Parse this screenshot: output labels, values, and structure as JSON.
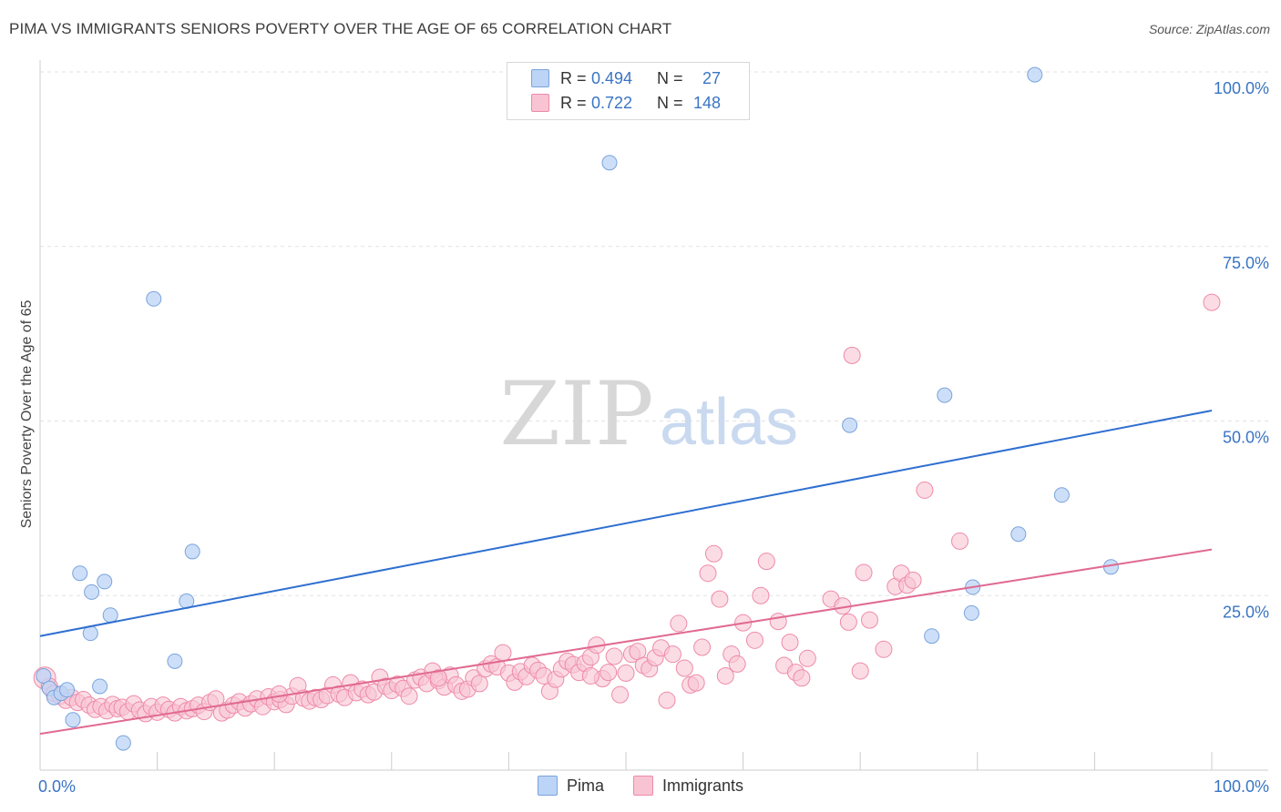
{
  "title": "PIMA VS IMMIGRANTS SENIORS POVERTY OVER THE AGE OF 65 CORRELATION CHART",
  "source": "Source: ZipAtlas.com",
  "watermark": {
    "zip": "ZIP",
    "atlas": "atlas"
  },
  "legend_top": [
    {
      "r_label": "R =",
      "r_value": "0.494",
      "n_label": "N =",
      "n_value": "27"
    },
    {
      "r_label": "R =",
      "r_value": "0.722",
      "n_label": "N =",
      "n_value": "148"
    }
  ],
  "colors": {
    "pima_fill": "#bcd4f5",
    "pima_stroke": "#7aa3dc",
    "pima_line": "#2f6fd0",
    "imm_fill": "#f8c4d3",
    "imm_stroke": "#ee8aa8",
    "imm_line": "#e06a92",
    "tick_label": "#3a74c4",
    "grid": "#e2e2e2"
  },
  "chart_data": {
    "type": "scatter",
    "title": "PIMA VS IMMIGRANTS SENIORS POVERTY OVER THE AGE OF 65 CORRELATION CHART",
    "xlabel": "",
    "ylabel": "Seniors Poverty Over the Age of 65",
    "xlim": [
      0,
      100
    ],
    "ylim": [
      0,
      102
    ],
    "x_tick_labels": [
      "0.0%",
      "100.0%"
    ],
    "y_ticks": [
      25,
      50,
      75,
      100
    ],
    "y_tick_labels": [
      "25.0%",
      "50.0%",
      "75.0%",
      "100.0%"
    ],
    "grid": true,
    "legend_placement": "top-center and bottom",
    "series": [
      {
        "name": "Pima",
        "r": 0.494,
        "n": 27,
        "trend": [
          [
            0,
            19.2
          ],
          [
            100,
            51.5
          ]
        ],
        "points": [
          [
            0.3,
            13.5
          ],
          [
            0.8,
            11.7
          ],
          [
            1.2,
            10.4
          ],
          [
            1.8,
            11.0
          ],
          [
            2.3,
            11.5
          ],
          [
            2.8,
            7.2
          ],
          [
            3.4,
            28.2
          ],
          [
            4.3,
            19.6
          ],
          [
            4.4,
            25.5
          ],
          [
            5.1,
            12.0
          ],
          [
            5.5,
            27.0
          ],
          [
            6.0,
            22.2
          ],
          [
            7.1,
            3.9
          ],
          [
            9.7,
            67.5
          ],
          [
            11.5,
            15.6
          ],
          [
            12.5,
            24.2
          ],
          [
            13.0,
            31.3
          ],
          [
            48.6,
            87.0
          ],
          [
            69.1,
            49.4
          ],
          [
            76.1,
            19.2
          ],
          [
            77.2,
            53.7
          ],
          [
            79.5,
            22.5
          ],
          [
            79.6,
            26.2
          ],
          [
            83.5,
            33.8
          ],
          [
            84.9,
            99.6
          ],
          [
            87.2,
            39.4
          ],
          [
            91.4,
            29.1
          ]
        ]
      },
      {
        "name": "Immigrants",
        "r": 0.722,
        "n": 148,
        "trend": [
          [
            0,
            5.2
          ],
          [
            100,
            31.6
          ]
        ],
        "points": [
          [
            0.4,
            13.2
          ],
          [
            0.8,
            12.0
          ],
          [
            1.2,
            11.0
          ],
          [
            1.7,
            10.6
          ],
          [
            2.2,
            10.0
          ],
          [
            2.7,
            10.4
          ],
          [
            3.2,
            9.7
          ],
          [
            3.7,
            10.1
          ],
          [
            4.2,
            9.3
          ],
          [
            4.7,
            8.7
          ],
          [
            5.2,
            9.1
          ],
          [
            5.7,
            8.5
          ],
          [
            6.2,
            9.4
          ],
          [
            6.6,
            8.8
          ],
          [
            7.0,
            9.0
          ],
          [
            7.5,
            8.4
          ],
          [
            8.0,
            9.5
          ],
          [
            8.5,
            8.6
          ],
          [
            9.0,
            8.1
          ],
          [
            9.5,
            9.1
          ],
          [
            10.0,
            8.3
          ],
          [
            10.5,
            9.3
          ],
          [
            11.0,
            8.7
          ],
          [
            11.5,
            8.2
          ],
          [
            12.0,
            9.1
          ],
          [
            12.5,
            8.5
          ],
          [
            13.0,
            8.8
          ],
          [
            13.5,
            9.3
          ],
          [
            14.0,
            8.4
          ],
          [
            14.5,
            9.7
          ],
          [
            15.0,
            10.2
          ],
          [
            15.5,
            8.2
          ],
          [
            16.0,
            8.6
          ],
          [
            16.5,
            9.3
          ],
          [
            17.0,
            9.8
          ],
          [
            17.5,
            8.9
          ],
          [
            18.0,
            9.5
          ],
          [
            18.5,
            10.2
          ],
          [
            19.0,
            9.1
          ],
          [
            19.5,
            10.5
          ],
          [
            20.0,
            9.8
          ],
          [
            20.5,
            10.1
          ],
          [
            21.0,
            9.4
          ],
          [
            21.5,
            10.6
          ],
          [
            22.0,
            12.1
          ],
          [
            22.5,
            10.3
          ],
          [
            23.0,
            9.9
          ],
          [
            23.5,
            10.4
          ],
          [
            24.0,
            10.1
          ],
          [
            24.5,
            10.7
          ],
          [
            25.0,
            12.2
          ],
          [
            25.5,
            10.9
          ],
          [
            26.0,
            10.4
          ],
          [
            26.5,
            12.5
          ],
          [
            27.0,
            11.1
          ],
          [
            27.5,
            11.6
          ],
          [
            28.0,
            10.8
          ],
          [
            28.5,
            11.2
          ],
          [
            29.0,
            13.3
          ],
          [
            29.5,
            12.0
          ],
          [
            30.0,
            11.4
          ],
          [
            30.5,
            12.3
          ],
          [
            31.0,
            11.7
          ],
          [
            31.5,
            10.6
          ],
          [
            32.0,
            12.9
          ],
          [
            32.5,
            13.3
          ],
          [
            33.0,
            12.4
          ],
          [
            33.5,
            14.2
          ],
          [
            34.0,
            12.8
          ],
          [
            34.5,
            11.9
          ],
          [
            35.0,
            13.6
          ],
          [
            35.5,
            12.2
          ],
          [
            36.0,
            11.3
          ],
          [
            36.5,
            11.6
          ],
          [
            37.0,
            13.2
          ],
          [
            37.5,
            12.4
          ],
          [
            38.0,
            14.5
          ],
          [
            38.5,
            15.2
          ],
          [
            39.0,
            14.8
          ],
          [
            39.5,
            16.8
          ],
          [
            40.0,
            13.9
          ],
          [
            40.5,
            12.6
          ],
          [
            41.0,
            14.1
          ],
          [
            41.5,
            13.4
          ],
          [
            42.0,
            15.0
          ],
          [
            42.5,
            14.3
          ],
          [
            43.0,
            13.5
          ],
          [
            43.5,
            11.3
          ],
          [
            44.0,
            13.0
          ],
          [
            44.5,
            14.5
          ],
          [
            45.0,
            15.6
          ],
          [
            45.5,
            15.1
          ],
          [
            46.0,
            14.0
          ],
          [
            46.5,
            15.3
          ],
          [
            47.0,
            16.2
          ],
          [
            47.5,
            17.9
          ],
          [
            48.0,
            13.1
          ],
          [
            48.5,
            14.0
          ],
          [
            49.0,
            16.3
          ],
          [
            49.5,
            10.8
          ],
          [
            50.0,
            13.9
          ],
          [
            50.5,
            16.6
          ],
          [
            51.0,
            17.0
          ],
          [
            51.5,
            15.0
          ],
          [
            52.0,
            14.5
          ],
          [
            52.5,
            16.1
          ],
          [
            53.0,
            17.5
          ],
          [
            53.5,
            10.0
          ],
          [
            54.0,
            16.6
          ],
          [
            54.5,
            21.0
          ],
          [
            55.0,
            14.6
          ],
          [
            55.5,
            12.2
          ],
          [
            56.0,
            12.5
          ],
          [
            56.5,
            17.6
          ],
          [
            57.0,
            28.2
          ],
          [
            57.5,
            31.0
          ],
          [
            58.0,
            24.5
          ],
          [
            58.5,
            13.5
          ],
          [
            59.0,
            16.6
          ],
          [
            59.5,
            15.2
          ],
          [
            60.0,
            21.1
          ],
          [
            61.0,
            18.6
          ],
          [
            61.5,
            25.0
          ],
          [
            62.0,
            29.9
          ],
          [
            63.0,
            21.3
          ],
          [
            63.5,
            15.0
          ],
          [
            64.0,
            18.3
          ],
          [
            64.5,
            14.0
          ],
          [
            65.0,
            13.2
          ],
          [
            65.5,
            16.0
          ],
          [
            67.5,
            24.5
          ],
          [
            68.5,
            23.5
          ],
          [
            69.0,
            21.2
          ],
          [
            69.3,
            59.4
          ],
          [
            70.0,
            14.2
          ],
          [
            70.3,
            28.3
          ],
          [
            70.8,
            21.5
          ],
          [
            72.0,
            17.3
          ],
          [
            73.0,
            26.3
          ],
          [
            73.5,
            28.2
          ],
          [
            74.0,
            26.5
          ],
          [
            74.5,
            27.2
          ],
          [
            75.5,
            40.1
          ],
          [
            78.5,
            32.8
          ],
          [
            100.0,
            67.0
          ],
          [
            20.4,
            10.9
          ],
          [
            34.0,
            13.2
          ],
          [
            47.0,
            13.5
          ]
        ]
      }
    ]
  },
  "legend_bottom": [
    {
      "label": "Pima"
    },
    {
      "label": "Immigrants"
    }
  ]
}
